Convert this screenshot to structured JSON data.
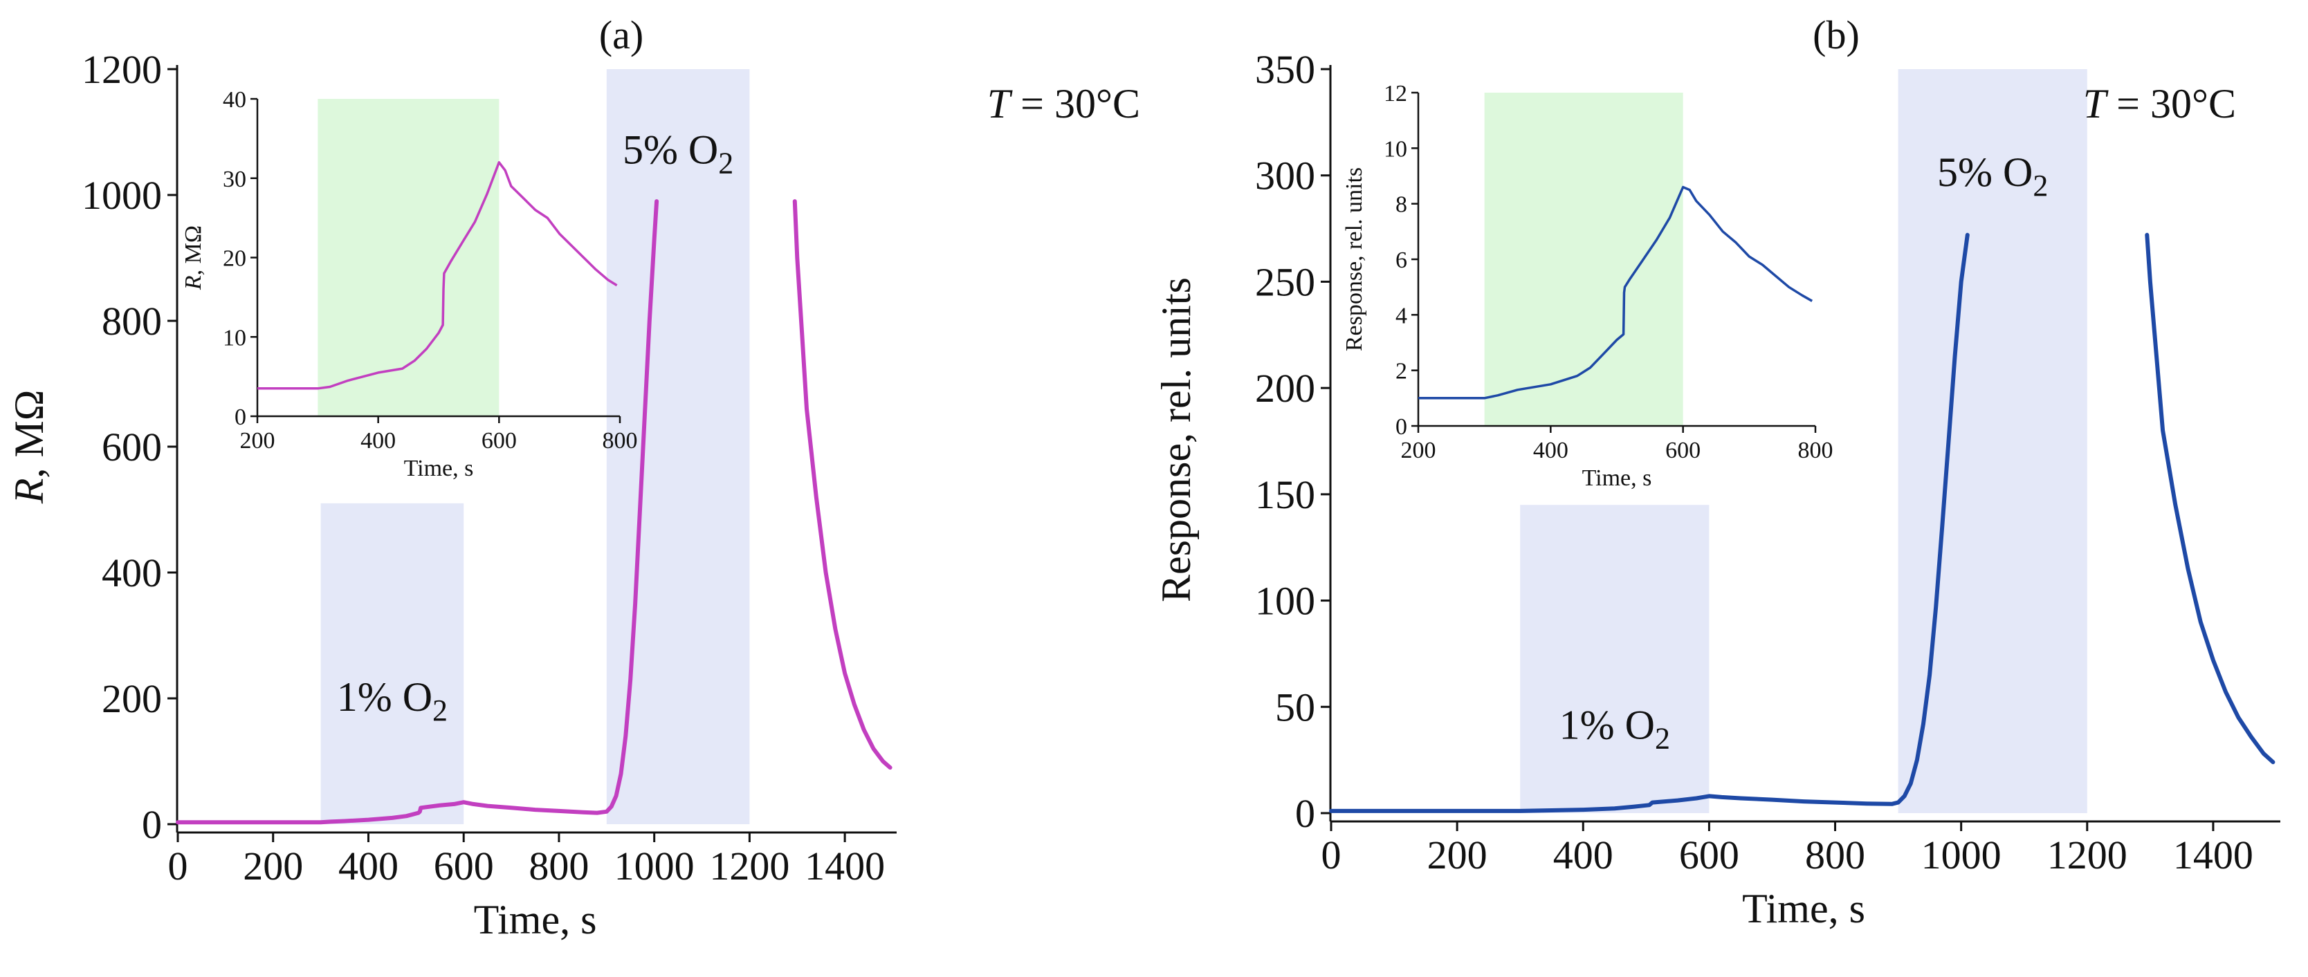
{
  "colors": {
    "panel_a_line": "#C23FC0",
    "panel_b_line": "#1E49A6",
    "gas_band": "#E4E8F8",
    "inset_band": "#DDF8DC",
    "axis": "#111111"
  },
  "chart_data": [
    {
      "type": "line",
      "panel": "(a)",
      "title": "(a)",
      "xlabel": "Time, s",
      "ylabel": "R, MΩ",
      "ylabel_italic": "R",
      "ylabel_unit": ", MΩ",
      "xlim": [
        0,
        1500
      ],
      "ylim": [
        0,
        1200
      ],
      "xticks": [
        0,
        200,
        400,
        600,
        800,
        1000,
        1200,
        1400
      ],
      "yticks": [
        0,
        200,
        400,
        600,
        800,
        1000,
        1200
      ],
      "condition": "T = 30°C",
      "condition_italic": "T",
      "condition_rest": " = 30°C",
      "bands": [
        {
          "x0": 300,
          "x1": 600,
          "ytop": 510,
          "label_main": "1% O",
          "label_sub": "2",
          "label_y": 180
        },
        {
          "x0": 900,
          "x1": 1200,
          "ytop": 1200,
          "label_main": "5% O",
          "label_sub": "2",
          "label_y": 1050
        }
      ],
      "series": [
        {
          "name": "R",
          "segments": [
            [
              [
                0,
                3
              ],
              [
                300,
                3
              ],
              [
                320,
                4
              ],
              [
                350,
                5
              ],
              [
                400,
                7
              ],
              [
                450,
                10
              ],
              [
                480,
                13
              ],
              [
                505,
                18
              ],
              [
                508,
                20
              ],
              [
                510,
                26
              ],
              [
                550,
                30
              ],
              [
                580,
                32
              ],
              [
                600,
                35
              ],
              [
                620,
                32
              ],
              [
                650,
                29
              ],
              [
                700,
                26
              ],
              [
                750,
                23
              ],
              [
                800,
                21
              ],
              [
                850,
                19
              ],
              [
                880,
                18
              ],
              [
                900,
                20
              ],
              [
                910,
                28
              ],
              [
                920,
                45
              ],
              [
                930,
                80
              ],
              [
                940,
                140
              ],
              [
                950,
                230
              ],
              [
                960,
                350
              ],
              [
                970,
                500
              ],
              [
                980,
                650
              ],
              [
                990,
                800
              ],
              [
                1000,
                930
              ],
              [
                1005,
                990
              ]
            ],
            [
              [
                1295,
                990
              ],
              [
                1300,
                900
              ],
              [
                1310,
                780
              ],
              [
                1320,
                660
              ],
              [
                1340,
                520
              ],
              [
                1360,
                400
              ],
              [
                1380,
                310
              ],
              [
                1400,
                240
              ],
              [
                1420,
                190
              ],
              [
                1440,
                150
              ],
              [
                1460,
                120
              ],
              [
                1480,
                100
              ],
              [
                1495,
                90
              ]
            ]
          ]
        }
      ],
      "inset": {
        "xlabel": "Time, s",
        "ylabel": "R, MΩ",
        "ylabel_italic": "R",
        "ylabel_unit": ", MΩ",
        "xlim": [
          200,
          800
        ],
        "ylim": [
          0,
          40
        ],
        "xticks": [
          200,
          400,
          600,
          800
        ],
        "yticks": [
          0,
          10,
          20,
          30,
          40
        ],
        "band": {
          "x0": 300,
          "x1": 600
        },
        "series": [
          [
            200,
            3.5
          ],
          [
            300,
            3.5
          ],
          [
            320,
            3.7
          ],
          [
            350,
            4.5
          ],
          [
            400,
            5.5
          ],
          [
            440,
            6.0
          ],
          [
            460,
            7.0
          ],
          [
            480,
            8.5
          ],
          [
            500,
            10.5
          ],
          [
            507,
            11.5
          ],
          [
            508,
            16
          ],
          [
            509,
            18
          ],
          [
            520,
            19.5
          ],
          [
            540,
            22
          ],
          [
            560,
            24.5
          ],
          [
            580,
            28
          ],
          [
            600,
            32
          ],
          [
            610,
            31
          ],
          [
            620,
            29
          ],
          [
            640,
            27.5
          ],
          [
            660,
            26
          ],
          [
            680,
            25
          ],
          [
            700,
            23
          ],
          [
            720,
            21.5
          ],
          [
            740,
            20
          ],
          [
            760,
            18.5
          ],
          [
            780,
            17.2
          ],
          [
            795,
            16.5
          ]
        ]
      }
    },
    {
      "type": "line",
      "panel": "(b)",
      "title": "(b)",
      "xlabel": "Time, s",
      "ylabel": "Response, rel. units",
      "xlim": [
        0,
        1500
      ],
      "ylim": [
        0,
        350
      ],
      "xticks": [
        0,
        200,
        400,
        600,
        800,
        1000,
        1200,
        1400
      ],
      "yticks": [
        0,
        50,
        100,
        150,
        200,
        250,
        300,
        350
      ],
      "condition": "T = 30°C",
      "condition_italic": "T",
      "condition_rest": " = 30°C",
      "bands": [
        {
          "x0": 300,
          "x1": 600,
          "ytop": 145,
          "label_main": "1% O",
          "label_sub": "2",
          "label_y": 35
        },
        {
          "x0": 900,
          "x1": 1200,
          "ytop": 350,
          "label_main": "5% O",
          "label_sub": "2",
          "label_y": 295
        }
      ],
      "series": [
        {
          "name": "Response",
          "segments": [
            [
              [
                0,
                1
              ],
              [
                300,
                1
              ],
              [
                350,
                1.3
              ],
              [
                400,
                1.6
              ],
              [
                450,
                2.2
              ],
              [
                480,
                3.0
              ],
              [
                505,
                3.8
              ],
              [
                510,
                5.0
              ],
              [
                550,
                6.0
              ],
              [
                580,
                7.0
              ],
              [
                600,
                8.0
              ],
              [
                620,
                7.5
              ],
              [
                650,
                7.0
              ],
              [
                700,
                6.3
              ],
              [
                750,
                5.5
              ],
              [
                800,
                5.0
              ],
              [
                850,
                4.5
              ],
              [
                890,
                4.3
              ],
              [
                900,
                5
              ],
              [
                910,
                8
              ],
              [
                920,
                14
              ],
              [
                930,
                25
              ],
              [
                940,
                42
              ],
              [
                950,
                65
              ],
              [
                960,
                97
              ],
              [
                970,
                135
              ],
              [
                980,
                175
              ],
              [
                990,
                215
              ],
              [
                1000,
                250
              ],
              [
                1010,
                272
              ]
            ],
            [
              [
                1295,
                272
              ],
              [
                1300,
                250
              ],
              [
                1310,
                215
              ],
              [
                1320,
                180
              ],
              [
                1340,
                145
              ],
              [
                1360,
                115
              ],
              [
                1380,
                90
              ],
              [
                1400,
                72
              ],
              [
                1420,
                57
              ],
              [
                1440,
                45
              ],
              [
                1460,
                36
              ],
              [
                1480,
                28
              ],
              [
                1495,
                24
              ]
            ]
          ]
        }
      ],
      "inset": {
        "xlabel": "Time, s",
        "ylabel": "Response, rel. units",
        "xlim": [
          200,
          800
        ],
        "ylim": [
          0,
          12
        ],
        "xticks": [
          200,
          400,
          600,
          800
        ],
        "yticks": [
          0,
          2,
          4,
          6,
          8,
          10,
          12
        ],
        "band": {
          "x0": 300,
          "x1": 600
        },
        "series": [
          [
            200,
            1.0
          ],
          [
            300,
            1.0
          ],
          [
            320,
            1.1
          ],
          [
            350,
            1.3
          ],
          [
            400,
            1.5
          ],
          [
            440,
            1.8
          ],
          [
            460,
            2.1
          ],
          [
            480,
            2.6
          ],
          [
            500,
            3.1
          ],
          [
            510,
            3.3
          ],
          [
            511,
            4.8
          ],
          [
            512,
            5.0
          ],
          [
            520,
            5.3
          ],
          [
            540,
            6.0
          ],
          [
            560,
            6.7
          ],
          [
            580,
            7.5
          ],
          [
            600,
            8.6
          ],
          [
            610,
            8.5
          ],
          [
            620,
            8.1
          ],
          [
            640,
            7.6
          ],
          [
            660,
            7.0
          ],
          [
            680,
            6.6
          ],
          [
            700,
            6.1
          ],
          [
            720,
            5.8
          ],
          [
            740,
            5.4
          ],
          [
            760,
            5.0
          ],
          [
            780,
            4.7
          ],
          [
            795,
            4.5
          ]
        ]
      }
    }
  ]
}
